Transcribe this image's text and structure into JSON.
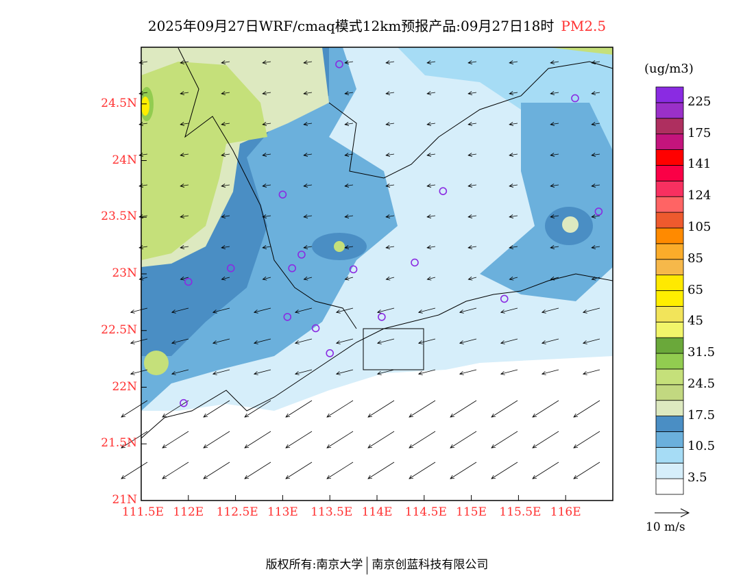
{
  "title": {
    "main": "2025年09月27日WRF/cmaq模式12km预报产品:09月27日18时",
    "species": "PM2.5"
  },
  "map": {
    "lon_range": [
      111.5,
      116.5
    ],
    "lat_range": [
      21,
      25
    ],
    "lon_ticks": [
      "111.5E",
      "112E",
      "112.5E",
      "113E",
      "113.5E",
      "114E",
      "114.5E",
      "115E",
      "115.5E",
      "116E"
    ],
    "lon_values": [
      111.5,
      112,
      112.5,
      113,
      113.5,
      114,
      114.5,
      115,
      115.5,
      116
    ],
    "lat_ticks": [
      "21N",
      "21.5N",
      "22N",
      "22.5N",
      "23N",
      "23.5N",
      "24N",
      "24.5N"
    ],
    "lat_values": [
      21,
      21.5,
      22,
      22.5,
      23,
      23.5,
      24,
      24.5
    ],
    "stations": [
      [
        113.6,
        24.85
      ],
      [
        116.1,
        24.55
      ],
      [
        113.0,
        23.7
      ],
      [
        114.7,
        23.73
      ],
      [
        116.35,
        23.55
      ],
      [
        112.45,
        23.05
      ],
      [
        113.2,
        23.17
      ],
      [
        113.1,
        23.05
      ],
      [
        113.75,
        23.04
      ],
      [
        114.4,
        23.1
      ],
      [
        112.0,
        22.93
      ],
      [
        115.35,
        22.78
      ],
      [
        113.05,
        22.62
      ],
      [
        114.05,
        22.62
      ],
      [
        113.35,
        22.52
      ],
      [
        113.5,
        22.3
      ],
      [
        111.95,
        21.86
      ]
    ],
    "station_color": "#8a2be2"
  },
  "colorbar": {
    "unit": "(ug/m3)",
    "colors": [
      "#ffffff",
      "#d6eefa",
      "#a6dcf5",
      "#6bb0dc",
      "#4a8ec4",
      "#dde9c0",
      "#c2d880",
      "#c5e07a",
      "#92cc50",
      "#6aa83a",
      "#f2f56a",
      "#f2e45a",
      "#ffee00",
      "#ffe900",
      "#f6b84a",
      "#fbac2a",
      "#ff8a00",
      "#ee5a2e",
      "#ff6464",
      "#f83060",
      "#fa0046",
      "#ff0000",
      "#c4147c",
      "#ae2f5f",
      "#9a30c8",
      "#8a2be2"
    ],
    "labels": [
      "3.5",
      "10.5",
      "17.5",
      "24.5",
      "31.5",
      "45",
      "65",
      "85",
      "105",
      "124",
      "141",
      "175",
      "225"
    ]
  },
  "wind_legend": "10 m/s",
  "footer": {
    "left": "版权所有:南京大学",
    "right": "南京创蓝科技有限公司"
  }
}
